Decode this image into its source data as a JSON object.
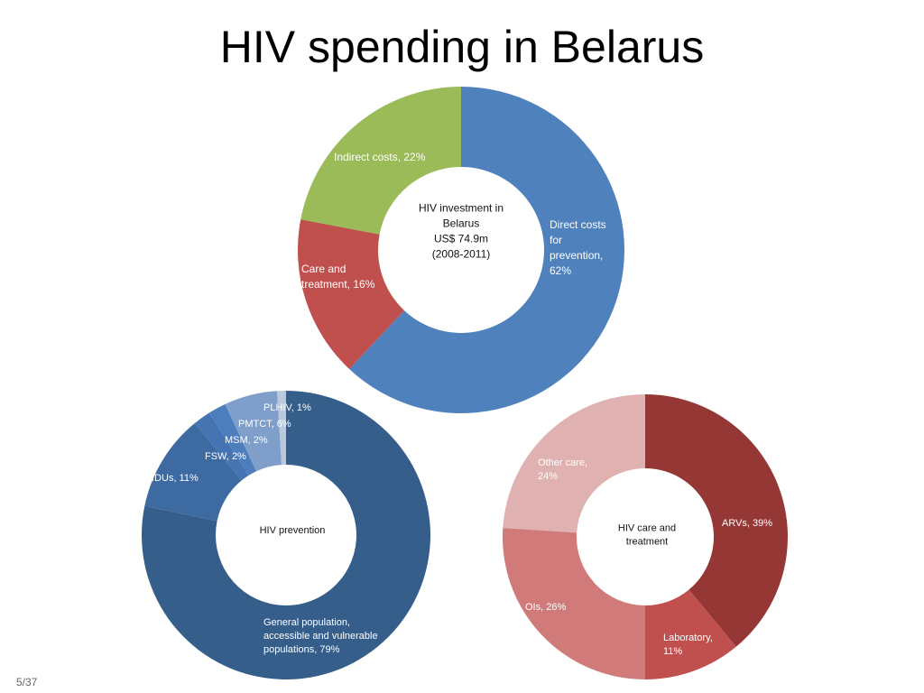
{
  "slide_title": "HIV spending in Belarus",
  "page_number": "5/37",
  "chart_data": [
    {
      "type": "donut",
      "center_label": [
        "HIV investment in",
        "Belarus",
        "US$ 74.9m",
        "(2008-2011)"
      ],
      "values": [
        62,
        16,
        22
      ],
      "value_labels": [
        [
          "Direct costs",
          "for",
          "prevention,",
          "62%"
        ],
        [
          "Care and",
          "treatment, 16%"
        ],
        [
          "Indirect costs, 22%"
        ]
      ],
      "colors": [
        "#4f81bd",
        "#c0504d",
        "#9bbb59"
      ]
    },
    {
      "type": "donut",
      "center_label": [
        "HIV prevention"
      ],
      "values": [
        79,
        11,
        2,
        2,
        6,
        1
      ],
      "value_labels": [
        [
          "General population,",
          "accessible and vulnerable",
          "populations, 79%"
        ],
        [
          "IDUs, 11%"
        ],
        [
          "FSW, 2%"
        ],
        [
          "MSM, 2%"
        ],
        [
          "PMTCT, 6%"
        ],
        [
          "PLHIV, 1%"
        ]
      ],
      "colors": [
        "#355e8a",
        "#3d6aa0",
        "#4474b2",
        "#4c7ebd",
        "#7f9fca",
        "#b8c9e0"
      ]
    },
    {
      "type": "donut",
      "center_label": [
        "HIV care and",
        "treatment"
      ],
      "values": [
        39,
        11,
        26,
        24
      ],
      "value_labels": [
        [
          "ARVs, 39%"
        ],
        [
          "Laboratory,",
          "11%"
        ],
        [
          "OIs, 26%"
        ],
        [
          "Other care,",
          "24%"
        ]
      ],
      "colors": [
        "#953735",
        "#c0504d",
        "#d07a7a",
        "#dfb1b0"
      ]
    }
  ]
}
